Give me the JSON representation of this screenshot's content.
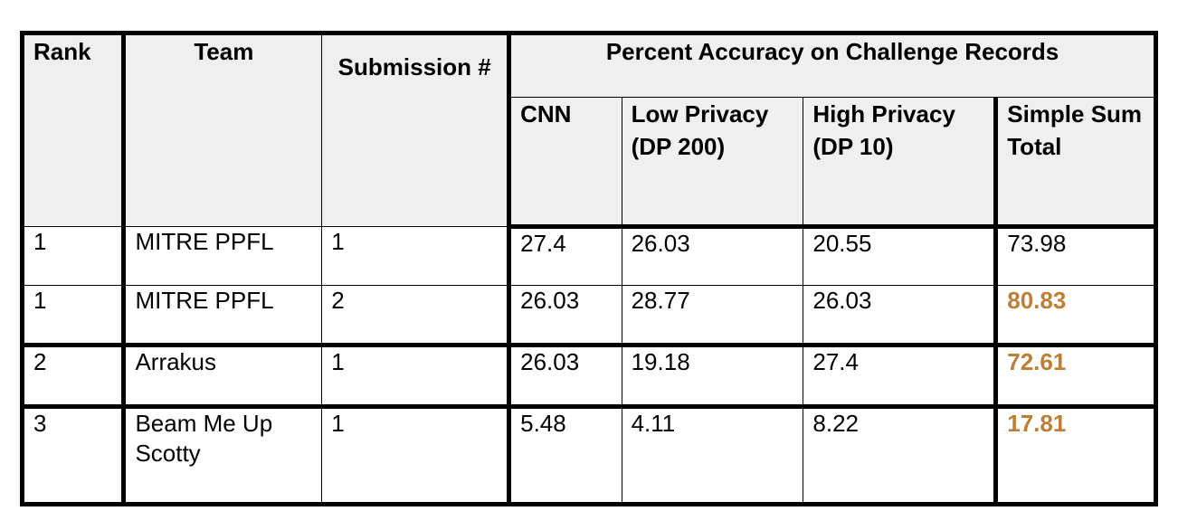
{
  "headers": {
    "rank": "Rank",
    "team": "Team",
    "submission": "Submission #",
    "group": "Percent Accuracy on Challenge Records",
    "cnn": "CNN",
    "low": "Low Privacy (DP 200)",
    "high": "High Privacy (DP 10)",
    "total": "Simple Sum Total"
  },
  "rows": [
    {
      "rank": "1",
      "team": "MITRE PPFL",
      "submission": "1",
      "cnn": "27.4",
      "low": "26.03",
      "high": "20.55",
      "total": "73.98",
      "highlight": false
    },
    {
      "rank": "1",
      "team": "MITRE PPFL",
      "submission": "2",
      "cnn": "26.03",
      "low": "28.77",
      "high": "26.03",
      "total": "80.83",
      "highlight": true
    },
    {
      "rank": "2",
      "team": "Arrakus",
      "submission": "1",
      "cnn": "26.03",
      "low": "19.18",
      "high": "27.4",
      "total": "72.61",
      "highlight": true
    },
    {
      "rank": "3",
      "team": "Beam Me Up Scotty",
      "submission": "1",
      "cnn": "5.48",
      "low": "4.11",
      "high": "8.22",
      "total": "17.81",
      "highlight": true
    }
  ],
  "colors": {
    "highlight_total": "#c07e35",
    "header_bg": "#efefef",
    "border": "#000000"
  }
}
